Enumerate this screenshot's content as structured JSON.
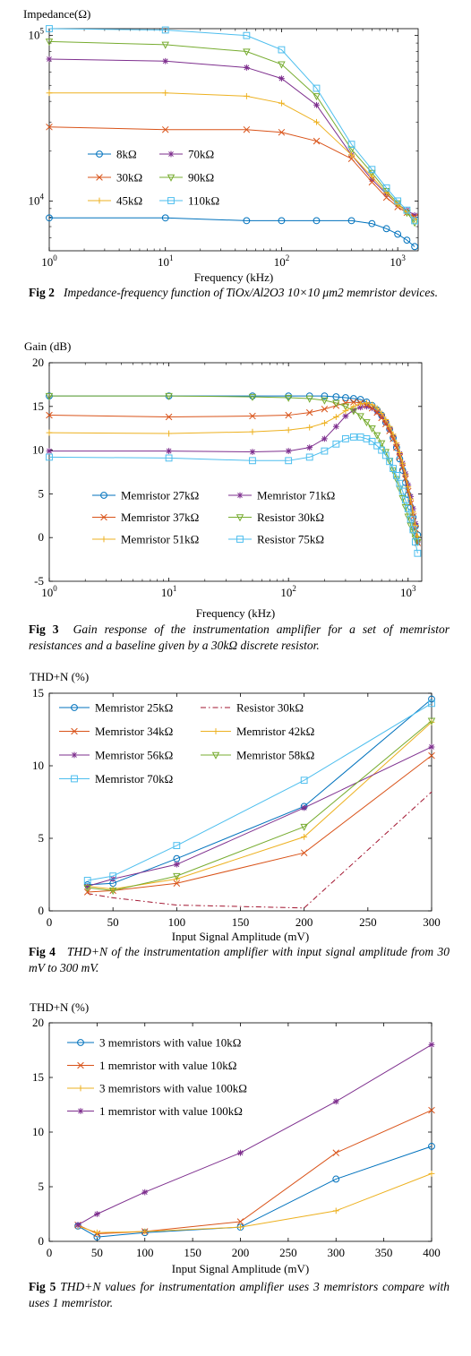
{
  "chart_data": [
    {
      "type": "line",
      "ylabel": "Impedance(Ω)",
      "xlabel": "Frequency (kHz)",
      "xscale": "log",
      "yscale": "log",
      "xlim": [
        1,
        1500
      ],
      "ylim": [
        5000,
        110000
      ],
      "xticks": [
        {
          "v": 1,
          "label": "10",
          "sup": "0"
        },
        {
          "v": 10,
          "label": "10",
          "sup": "1"
        },
        {
          "v": 100,
          "label": "10",
          "sup": "2"
        },
        {
          "v": 1000,
          "label": "10",
          "sup": "3"
        }
      ],
      "yticks": [
        {
          "v": 10000,
          "label": "10",
          "sup": "4"
        },
        {
          "v": 100000,
          "label": "10",
          "sup": "5"
        }
      ],
      "legend_position": "bottom-left",
      "legend_columns": 2,
      "x": [
        1,
        10,
        50,
        100,
        200,
        400,
        600,
        800,
        1000,
        1200,
        1400
      ],
      "series": [
        {
          "name": "8kΩ",
          "marker": "circle",
          "color": "#0072BD",
          "values": [
            7900,
            7900,
            7600,
            7600,
            7600,
            7600,
            7300,
            6800,
            6300,
            5800,
            5300
          ]
        },
        {
          "name": "70kΩ",
          "marker": "star",
          "color": "#7E2F8E",
          "values": [
            72000,
            70000,
            64000,
            55000,
            38000,
            19000,
            13500,
            11000,
            9500,
            8800,
            8200
          ]
        },
        {
          "name": "30kΩ",
          "marker": "x",
          "color": "#D95319",
          "values": [
            28000,
            27000,
            27000,
            26000,
            23000,
            18000,
            13000,
            10500,
            9200,
            8500,
            8000
          ]
        },
        {
          "name": "90kΩ",
          "marker": "triangle-down",
          "color": "#77AC30",
          "values": [
            92000,
            88000,
            80000,
            67000,
            43000,
            20500,
            14800,
            11500,
            9700,
            8500,
            7400
          ]
        },
        {
          "name": "45kΩ",
          "marker": "plus",
          "color": "#EDB120",
          "values": [
            45000,
            45000,
            43000,
            39000,
            30000,
            19000,
            14000,
            11200,
            9500,
            8600,
            7800
          ]
        },
        {
          "name": "110kΩ",
          "marker": "square",
          "color": "#4DBEEE",
          "values": [
            110000,
            108000,
            100000,
            82000,
            48000,
            22000,
            15500,
            12000,
            10000,
            8800,
            7600
          ]
        }
      ]
    },
    {
      "type": "line",
      "ylabel": "Gain (dB)",
      "xlabel": "Frequency (kHz)",
      "xscale": "log",
      "xlim": [
        1,
        1300
      ],
      "ylim": [
        -5,
        20
      ],
      "xticks": [
        {
          "v": 1,
          "label": "10",
          "sup": "0"
        },
        {
          "v": 10,
          "label": "10",
          "sup": "1"
        },
        {
          "v": 100,
          "label": "10",
          "sup": "2"
        },
        {
          "v": 1000,
          "label": "10",
          "sup": "3"
        }
      ],
      "yticks": [
        {
          "v": -5,
          "label": "-5"
        },
        {
          "v": 0,
          "label": "0"
        },
        {
          "v": 5,
          "label": "5"
        },
        {
          "v": 10,
          "label": "10"
        },
        {
          "v": 15,
          "label": "15"
        },
        {
          "v": 20,
          "label": "20"
        }
      ],
      "legend_position": "bottom-center",
      "legend_columns": 2,
      "x": [
        1,
        10,
        50,
        100,
        150,
        200,
        250,
        300,
        350,
        400,
        450,
        500,
        550,
        600,
        650,
        700,
        750,
        800,
        850,
        900,
        950,
        1000,
        1050,
        1100,
        1150,
        1200
      ],
      "series": [
        {
          "name": "Memristor 27kΩ",
          "marker": "circle",
          "color": "#0072BD",
          "values": [
            16.2,
            16.2,
            16.2,
            16.2,
            16.2,
            16.2,
            16.1,
            16.0,
            15.9,
            15.8,
            15.5,
            15.1,
            14.6,
            14.0,
            13.2,
            12.4,
            11.4,
            10.3,
            9.0,
            7.7,
            6.3,
            4.9,
            3.5,
            2.3,
            1.3,
            0.3
          ]
        },
        {
          "name": "Memristor 71kΩ",
          "marker": "star",
          "color": "#7E2F8E",
          "values": [
            9.9,
            9.9,
            9.8,
            9.9,
            10.3,
            11.3,
            12.7,
            13.9,
            14.6,
            14.9,
            15.0,
            14.8,
            14.4,
            13.9,
            13.2,
            12.4,
            11.6,
            10.6,
            9.6,
            8.5,
            7.3,
            6.0,
            4.7,
            3.3,
            1.6,
            -0.5
          ]
        },
        {
          "name": "Memristor 37kΩ",
          "marker": "x",
          "color": "#D95319",
          "values": [
            14.0,
            13.8,
            13.9,
            14.0,
            14.3,
            14.7,
            15.1,
            15.4,
            15.5,
            15.4,
            15.2,
            14.8,
            14.3,
            13.7,
            13.0,
            12.2,
            11.3,
            10.3,
            9.2,
            8.0,
            6.7,
            5.3,
            3.9,
            2.4,
            1.0,
            -0.6
          ]
        },
        {
          "name": "Resistor 30kΩ",
          "marker": "triangle-down",
          "color": "#77AC30",
          "values": [
            16.2,
            16.2,
            16.1,
            16.0,
            15.9,
            15.7,
            15.4,
            15.0,
            14.5,
            13.9,
            13.2,
            12.5,
            11.7,
            10.8,
            9.8,
            8.8,
            7.7,
            6.7,
            5.6,
            4.5,
            3.5,
            2.4,
            1.4,
            0.6,
            -0.1,
            -0.5
          ]
        },
        {
          "name": "Memristor 51kΩ",
          "marker": "plus",
          "color": "#EDB120",
          "values": [
            12.0,
            11.9,
            12.1,
            12.3,
            12.6,
            13.1,
            13.8,
            14.5,
            15.0,
            15.3,
            15.4,
            15.2,
            14.8,
            14.2,
            13.5,
            12.7,
            11.8,
            10.8,
            9.7,
            8.5,
            7.2,
            5.8,
            4.4,
            2.9,
            1.4,
            0.1
          ]
        },
        {
          "name": "Resistor 75kΩ",
          "marker": "square",
          "color": "#4DBEEE",
          "values": [
            9.2,
            9.1,
            8.8,
            8.8,
            9.2,
            9.9,
            10.7,
            11.3,
            11.5,
            11.5,
            11.3,
            11.0,
            10.5,
            10.0,
            9.4,
            8.7,
            7.9,
            7.1,
            6.2,
            5.3,
            4.3,
            3.3,
            2.1,
            0.9,
            -0.5,
            -1.8
          ]
        }
      ]
    },
    {
      "type": "line",
      "ylabel": "THD+N (%)",
      "xlabel": "Input Signal Amplitude (mV)",
      "xlim": [
        0,
        300
      ],
      "ylim": [
        0,
        15
      ],
      "xticks": [
        {
          "v": 0,
          "label": "0"
        },
        {
          "v": 50,
          "label": "50"
        },
        {
          "v": 100,
          "label": "100"
        },
        {
          "v": 150,
          "label": "150"
        },
        {
          "v": 200,
          "label": "200"
        },
        {
          "v": 250,
          "label": "250"
        },
        {
          "v": 300,
          "label": "300"
        }
      ],
      "yticks": [
        {
          "v": 0,
          "label": "0"
        },
        {
          "v": 5,
          "label": "5"
        },
        {
          "v": 10,
          "label": "10"
        },
        {
          "v": 15,
          "label": "15"
        }
      ],
      "legend_position": "top-left",
      "legend_columns": 2,
      "x": [
        30,
        50,
        100,
        200,
        300
      ],
      "series": [
        {
          "name": "Memristor 25kΩ",
          "marker": "circle",
          "color": "#0072BD",
          "values": [
            1.8,
            1.9,
            3.6,
            7.2,
            14.6
          ]
        },
        {
          "name": "Resistor 30kΩ",
          "marker": "none",
          "dash": "dashdot",
          "color": "#A2142F",
          "values": [
            1.2,
            0.9,
            0.4,
            0.2,
            8.2
          ]
        },
        {
          "name": "Memristor 34kΩ",
          "marker": "x",
          "color": "#D95319",
          "values": [
            1.3,
            1.4,
            1.9,
            4.0,
            10.7
          ]
        },
        {
          "name": "Memristor 42kΩ",
          "marker": "plus",
          "color": "#EDB120",
          "values": [
            1.7,
            1.5,
            2.2,
            5.1,
            13.0
          ]
        },
        {
          "name": "Memristor 56kΩ",
          "marker": "star",
          "color": "#7E2F8E",
          "values": [
            1.7,
            2.2,
            3.2,
            7.1,
            11.3
          ]
        },
        {
          "name": "Memristor 58kΩ",
          "marker": "triangle-down",
          "color": "#77AC30",
          "values": [
            1.6,
            1.4,
            2.4,
            5.8,
            13.1
          ]
        },
        {
          "name": "Memristor 70kΩ",
          "marker": "square",
          "color": "#4DBEEE",
          "values": [
            2.1,
            2.4,
            4.5,
            9.0,
            14.3
          ]
        }
      ]
    },
    {
      "type": "line",
      "ylabel": "THD+N (%)",
      "xlabel": "Input Signal Amplitude (mV)",
      "xlim": [
        0,
        400
      ],
      "ylim": [
        0,
        20
      ],
      "xticks": [
        {
          "v": 0,
          "label": "0"
        },
        {
          "v": 50,
          "label": "50"
        },
        {
          "v": 100,
          "label": "100"
        },
        {
          "v": 150,
          "label": "150"
        },
        {
          "v": 200,
          "label": "200"
        },
        {
          "v": 250,
          "label": "250"
        },
        {
          "v": 300,
          "label": "300"
        },
        {
          "v": 350,
          "label": "350"
        },
        {
          "v": 400,
          "label": "400"
        }
      ],
      "yticks": [
        {
          "v": 0,
          "label": "0"
        },
        {
          "v": 5,
          "label": "5"
        },
        {
          "v": 10,
          "label": "10"
        },
        {
          "v": 15,
          "label": "15"
        },
        {
          "v": 20,
          "label": "20"
        }
      ],
      "legend_position": "top-left",
      "legend_columns": 1,
      "x": [
        30,
        50,
        100,
        200,
        300,
        400
      ],
      "series": [
        {
          "name": "3 memristors with value 10kΩ",
          "marker": "circle",
          "color": "#0072BD",
          "values": [
            1.4,
            0.4,
            0.8,
            1.3,
            5.7,
            8.7
          ]
        },
        {
          "name": "1 memristor with value 10kΩ",
          "marker": "x",
          "color": "#D95319",
          "values": [
            1.5,
            0.7,
            0.9,
            1.8,
            8.1,
            12.0
          ]
        },
        {
          "name": "3 memristors with value 100kΩ",
          "marker": "plus",
          "color": "#EDB120",
          "values": [
            1.4,
            0.8,
            0.9,
            1.3,
            2.8,
            6.2
          ]
        },
        {
          "name": "1 memristor with value 100kΩ",
          "marker": "star",
          "color": "#7E2F8E",
          "values": [
            1.5,
            2.5,
            4.5,
            8.1,
            12.8,
            18.0
          ]
        }
      ]
    }
  ],
  "captions": [
    {
      "label": "Fig 2",
      "text": "Impedance-frequency function of TiOx/Al2O3 10×10 μm2 memristor devices."
    },
    {
      "label": "Fig 3",
      "text": "Gain response of the instrumentation amplifier for a set of memristor resistances and a baseline given by a 30kΩ discrete resistor."
    },
    {
      "label": "Fig 4",
      "text": "THD+N of the instrumentation amplifier with input signal amplitude from 30 mV to 300 mV."
    },
    {
      "label": "Fig 5",
      "text": "THD+N values for instrumentation amplifier uses 3 memristors compare with uses 1 memristor."
    }
  ]
}
